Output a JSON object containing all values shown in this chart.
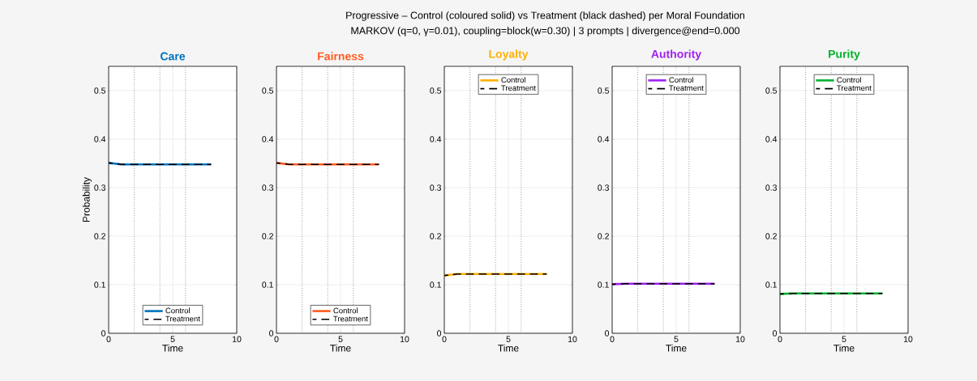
{
  "chart_data": [
    {
      "type": "line",
      "title": "Care",
      "xlabel": "Time",
      "ylabel": "Probability",
      "annotations": [
        "Progressive – Control (coloured solid) vs Treatment (black dashed) per Moral Foundation",
        "MARKOV  (q=0, γ=0.01), coupling=block(w=0.30) | 3 prompts | divergence@end=0.000"
      ],
      "x": [
        0,
        1,
        2,
        3,
        4,
        5,
        6,
        7,
        8
      ],
      "xlim": [
        0,
        10
      ],
      "xticks": [
        0,
        5,
        10
      ],
      "ylim": [
        0,
        0.55
      ],
      "yticks": [
        0,
        0.1,
        0.2,
        0.3,
        0.4,
        0.5
      ],
      "grid": true,
      "legend": "bottom",
      "series": [
        {
          "name": "Control",
          "color": "#0072bd",
          "line_style": "solid",
          "values": [
            0.351,
            0.348,
            0.348,
            0.348,
            0.348,
            0.348,
            0.348,
            0.348,
            0.348
          ]
        },
        {
          "name": "Treatment",
          "color": "#000000",
          "line_style": "dashed",
          "values": [
            0.351,
            0.348,
            0.348,
            0.348,
            0.348,
            0.348,
            0.348,
            0.348,
            0.348
          ]
        }
      ],
      "ref_lines": [
        {
          "axis": "x",
          "value": 2,
          "color": "#808080",
          "line_style": "dotted"
        },
        {
          "axis": "x",
          "value": 4,
          "color": "#808080",
          "line_style": "dotted"
        },
        {
          "axis": "x",
          "value": 6,
          "color": "#808080",
          "line_style": "dotted"
        }
      ]
    },
    {
      "type": "line",
      "title": "Fairness",
      "xlabel": "Time",
      "x": [
        0,
        1,
        2,
        3,
        4,
        5,
        6,
        7,
        8
      ],
      "xlim": [
        0,
        10
      ],
      "xticks": [
        0,
        5,
        10
      ],
      "ylim": [
        0,
        0.55
      ],
      "yticks": [
        0,
        0.1,
        0.2,
        0.3,
        0.4,
        0.5
      ],
      "grid": true,
      "legend": "bottom",
      "series": [
        {
          "name": "Control",
          "color": "#ff5a1f",
          "line_style": "solid",
          "values": [
            0.351,
            0.348,
            0.348,
            0.348,
            0.348,
            0.348,
            0.348,
            0.348,
            0.348
          ]
        },
        {
          "name": "Treatment",
          "color": "#000000",
          "line_style": "dashed",
          "values": [
            0.351,
            0.348,
            0.348,
            0.348,
            0.348,
            0.348,
            0.348,
            0.348,
            0.348
          ]
        }
      ],
      "ref_lines": [
        {
          "axis": "x",
          "value": 2,
          "color": "#808080",
          "line_style": "dotted"
        },
        {
          "axis": "x",
          "value": 4,
          "color": "#808080",
          "line_style": "dotted"
        },
        {
          "axis": "x",
          "value": 6,
          "color": "#808080",
          "line_style": "dotted"
        }
      ]
    },
    {
      "type": "line",
      "title": "Loyalty",
      "xlabel": "Time",
      "x": [
        0,
        1,
        2,
        3,
        4,
        5,
        6,
        7,
        8
      ],
      "xlim": [
        0,
        10
      ],
      "xticks": [
        0,
        5,
        10
      ],
      "ylim": [
        0,
        0.55
      ],
      "yticks": [
        0,
        0.1,
        0.2,
        0.3,
        0.4,
        0.5
      ],
      "grid": true,
      "legend": "top",
      "series": [
        {
          "name": "Control",
          "color": "#ffb000",
          "line_style": "solid",
          "values": [
            0.119,
            0.122,
            0.122,
            0.122,
            0.122,
            0.122,
            0.122,
            0.122,
            0.122
          ]
        },
        {
          "name": "Treatment",
          "color": "#000000",
          "line_style": "dashed",
          "values": [
            0.119,
            0.122,
            0.122,
            0.122,
            0.122,
            0.122,
            0.122,
            0.122,
            0.122
          ]
        }
      ],
      "ref_lines": [
        {
          "axis": "x",
          "value": 2,
          "color": "#808080",
          "line_style": "dotted"
        },
        {
          "axis": "x",
          "value": 4,
          "color": "#808080",
          "line_style": "dotted"
        },
        {
          "axis": "x",
          "value": 6,
          "color": "#808080",
          "line_style": "dotted"
        }
      ]
    },
    {
      "type": "line",
      "title": "Authority",
      "xlabel": "Time",
      "x": [
        0,
        1,
        2,
        3,
        4,
        5,
        6,
        7,
        8
      ],
      "xlim": [
        0,
        10
      ],
      "xticks": [
        0,
        5,
        10
      ],
      "ylim": [
        0,
        0.55
      ],
      "yticks": [
        0,
        0.1,
        0.2,
        0.3,
        0.4,
        0.5
      ],
      "grid": true,
      "legend": "top",
      "series": [
        {
          "name": "Control",
          "color": "#a020f0",
          "line_style": "solid",
          "values": [
            0.101,
            0.102,
            0.102,
            0.102,
            0.102,
            0.102,
            0.102,
            0.102,
            0.102
          ]
        },
        {
          "name": "Treatment",
          "color": "#000000",
          "line_style": "dashed",
          "values": [
            0.101,
            0.102,
            0.102,
            0.102,
            0.102,
            0.102,
            0.102,
            0.102,
            0.102
          ]
        }
      ],
      "ref_lines": [
        {
          "axis": "x",
          "value": 2,
          "color": "#808080",
          "line_style": "dotted"
        },
        {
          "axis": "x",
          "value": 4,
          "color": "#808080",
          "line_style": "dotted"
        },
        {
          "axis": "x",
          "value": 6,
          "color": "#808080",
          "line_style": "dotted"
        }
      ]
    },
    {
      "type": "line",
      "title": "Purity",
      "xlabel": "Time",
      "x": [
        0,
        1,
        2,
        3,
        4,
        5,
        6,
        7,
        8
      ],
      "xlim": [
        0,
        10
      ],
      "xticks": [
        0,
        5,
        10
      ],
      "ylim": [
        0,
        0.55
      ],
      "yticks": [
        0,
        0.1,
        0.2,
        0.3,
        0.4,
        0.5
      ],
      "grid": true,
      "legend": "top",
      "series": [
        {
          "name": "Control",
          "color": "#00b22e",
          "line_style": "solid",
          "values": [
            0.081,
            0.082,
            0.082,
            0.082,
            0.082,
            0.082,
            0.082,
            0.082,
            0.082
          ]
        },
        {
          "name": "Treatment",
          "color": "#000000",
          "line_style": "dashed",
          "values": [
            0.081,
            0.082,
            0.082,
            0.082,
            0.082,
            0.082,
            0.082,
            0.082,
            0.082
          ]
        }
      ],
      "ref_lines": [
        {
          "axis": "x",
          "value": 2,
          "color": "#808080",
          "line_style": "dotted"
        },
        {
          "axis": "x",
          "value": 4,
          "color": "#808080",
          "line_style": "dotted"
        },
        {
          "axis": "x",
          "value": 6,
          "color": "#808080",
          "line_style": "dotted"
        }
      ]
    }
  ]
}
